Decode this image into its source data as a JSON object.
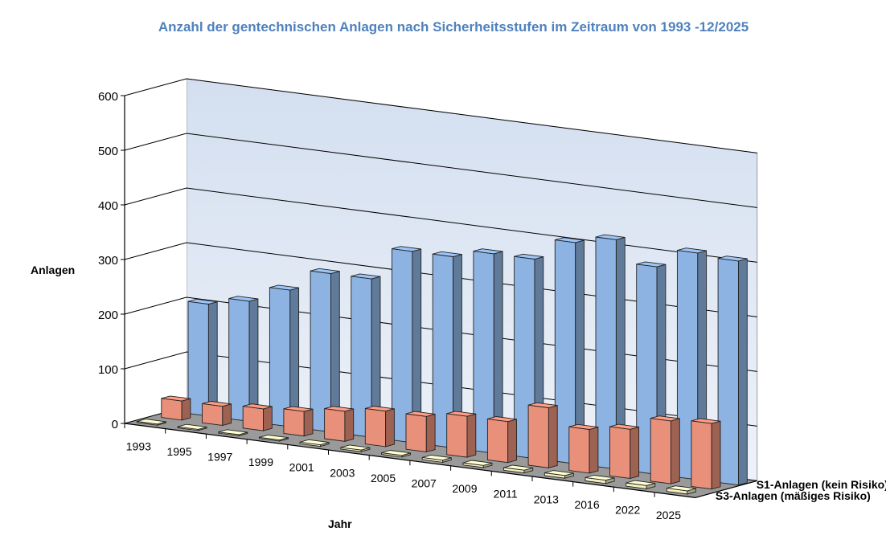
{
  "chart_data": {
    "type": "bar",
    "subtype": "3d-column",
    "title": "Anzahl der gentechnischen Anlagen nach Sicherheitsstufen im Zeitraum von 1993 -12/2025",
    "xlabel": "Jahr",
    "ylabel": "Anlagen",
    "ylim": [
      0,
      600
    ],
    "yticks": [
      "0",
      "100",
      "200",
      "300",
      "400",
      "500",
      "600"
    ],
    "grid": true,
    "categories": [
      "1993",
      "1995",
      "1997",
      "1999",
      "2001",
      "2003",
      "2005",
      "2007",
      "2009",
      "2011",
      "2013",
      "2016",
      "2022",
      "2025"
    ],
    "series": [
      {
        "name": "S1-Anlagen (kein Risiko)",
        "color": "#8db3e2",
        "values": [
          205,
          220,
          250,
          290,
          290,
          350,
          350,
          365,
          365,
          405,
          420,
          380,
          415,
          410
        ]
      },
      {
        "name": "",
        "color": "#e8907a",
        "values": [
          35,
          35,
          40,
          45,
          55,
          65,
          65,
          75,
          75,
          110,
          80,
          90,
          115,
          120
        ]
      },
      {
        "name": "S3-Anlagen (mäßiges Risiko)",
        "color": "#f5f0c0",
        "values": [
          2,
          2,
          2,
          2,
          3,
          3,
          3,
          4,
          4,
          5,
          5,
          6,
          6,
          6
        ]
      }
    ]
  }
}
